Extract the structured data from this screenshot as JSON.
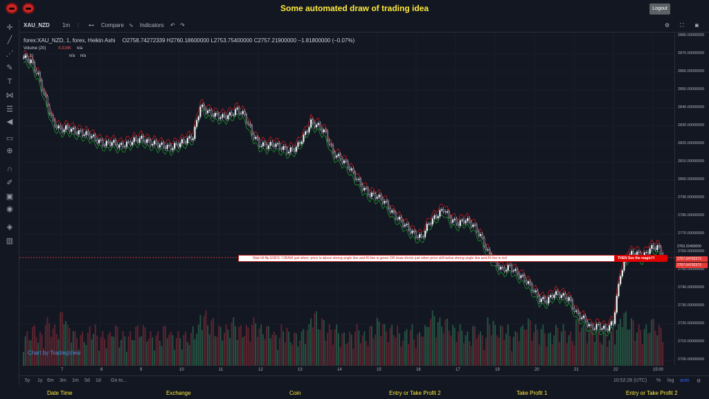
{
  "app": {
    "title": "Some automated draw of trading idea",
    "logout_label": "Logout"
  },
  "toolbar": {
    "symbol": "XAU_NZD",
    "interval": "1m",
    "compare_label": "Compare",
    "indicators_label": "Indicators"
  },
  "legend": {
    "main": "forex:XAU_NZD, 1, forex, Heikin Ashi",
    "ohlc": "O2758.74272339  H2760.18600000  L2753.75400000  C2757.21900000  −1.81800000 (−0.07%)",
    "volume_label": "Volume (20)",
    "volume_value": "4.316K",
    "volume_na": "n/a",
    "indicator2_label": "(1, 1)",
    "indicator2_na1": "n/a",
    "indicator2_na2": "n/a"
  },
  "banner": {
    "text": "Wait till flip ENDS  !    DRAW just when:  price is above strong angle line and AI line is green          OR          draw shorts just when price still below strong angle line and AI line is red",
    "magic_text": "THEN See the magic!!!"
  },
  "price_axis": {
    "ticks": [
      "2880.00000000",
      "2870.00000000",
      "2860.00000000",
      "2850.00000000",
      "2840.00000000",
      "2830.00000000",
      "2820.00000000",
      "2810.00000000",
      "2800.00000000",
      "2790.00000000",
      "2780.00000000",
      "2770.00000000",
      "2760.00000000",
      "2750.00000000",
      "2740.00000000",
      "2730.00000000",
      "2720.00000000",
      "2710.00000000",
      "2700.00000000"
    ],
    "tag_current": "2763.15450000",
    "tag_red1": "2757.04792373",
    "tag_red2": "2757.04792373"
  },
  "time_axis": [
    "7",
    "8",
    "9",
    "10",
    "11",
    "12",
    "13",
    "14",
    "15",
    "16",
    "17",
    "19",
    "20",
    "21",
    "22",
    "15:00"
  ],
  "bottombar": {
    "ranges": [
      "5y",
      "1y",
      "6m",
      "3m",
      "1m",
      "5d",
      "1d"
    ],
    "goto_label": "Go to...",
    "clock": "10:52:26 (UTC)",
    "percent_label": "%",
    "log_label": "log",
    "auto_label": "auto"
  },
  "watermark": "Chart by TradingView",
  "footer": [
    "Date Time",
    "Exchange",
    "Coin",
    "Entry or Take Profit 2",
    "Take Profit 1",
    "Entry or Take Profit 2"
  ],
  "chart_data": {
    "type": "candlestick",
    "x_ticks": [
      "7",
      "8",
      "9",
      "10",
      "11",
      "12",
      "13",
      "14",
      "15",
      "16",
      "17",
      "19",
      "20",
      "21",
      "22",
      "15:00"
    ],
    "ylim": [
      2700,
      2880
    ],
    "y_ticks": [
      2880,
      2870,
      2860,
      2850,
      2840,
      2830,
      2820,
      2810,
      2800,
      2790,
      2780,
      2770,
      2760,
      2750,
      2740,
      2730,
      2720,
      2710,
      2700
    ],
    "price_path": [
      2868,
      2866,
      2858,
      2845,
      2832,
      2828,
      2829,
      2827,
      2826,
      2825,
      2822,
      2820,
      2821,
      2819,
      2820,
      2822,
      2823,
      2821,
      2820,
      2819,
      2818,
      2820,
      2822,
      2824,
      2841,
      2838,
      2836,
      2835,
      2836,
      2839,
      2836,
      2826,
      2820,
      2819,
      2820,
      2818,
      2816,
      2818,
      2824,
      2832,
      2830,
      2826,
      2815,
      2812,
      2808,
      2802,
      2796,
      2792,
      2791,
      2788,
      2782,
      2778,
      2774,
      2770,
      2768,
      2776,
      2780,
      2784,
      2778,
      2776,
      2778,
      2775,
      2769,
      2760,
      2754,
      2750,
      2752,
      2748,
      2745,
      2740,
      2734,
      2733,
      2737,
      2736,
      2734,
      2726,
      2723,
      2718,
      2719,
      2717,
      2721,
      2748,
      2758,
      2760,
      2757,
      2762,
      2763,
      2757
    ],
    "volume": [
      2,
      3,
      2,
      4,
      3,
      5,
      3,
      2,
      2,
      3,
      2,
      2,
      3,
      2,
      2,
      3,
      3,
      2,
      2,
      3,
      2,
      2,
      2,
      3,
      5,
      4,
      3,
      3,
      4,
      3,
      3,
      4,
      3,
      3,
      2,
      3,
      2,
      2,
      3,
      5,
      4,
      3,
      3,
      2,
      2,
      3,
      2,
      3,
      4,
      3,
      3,
      2,
      3,
      2,
      3,
      5,
      4,
      4,
      3,
      3,
      2,
      3,
      2,
      4,
      3,
      3,
      2,
      3,
      4,
      3,
      3,
      2,
      3,
      3,
      2,
      4,
      3,
      3,
      2,
      2,
      3,
      5,
      4,
      3,
      3,
      4,
      3,
      2
    ]
  }
}
